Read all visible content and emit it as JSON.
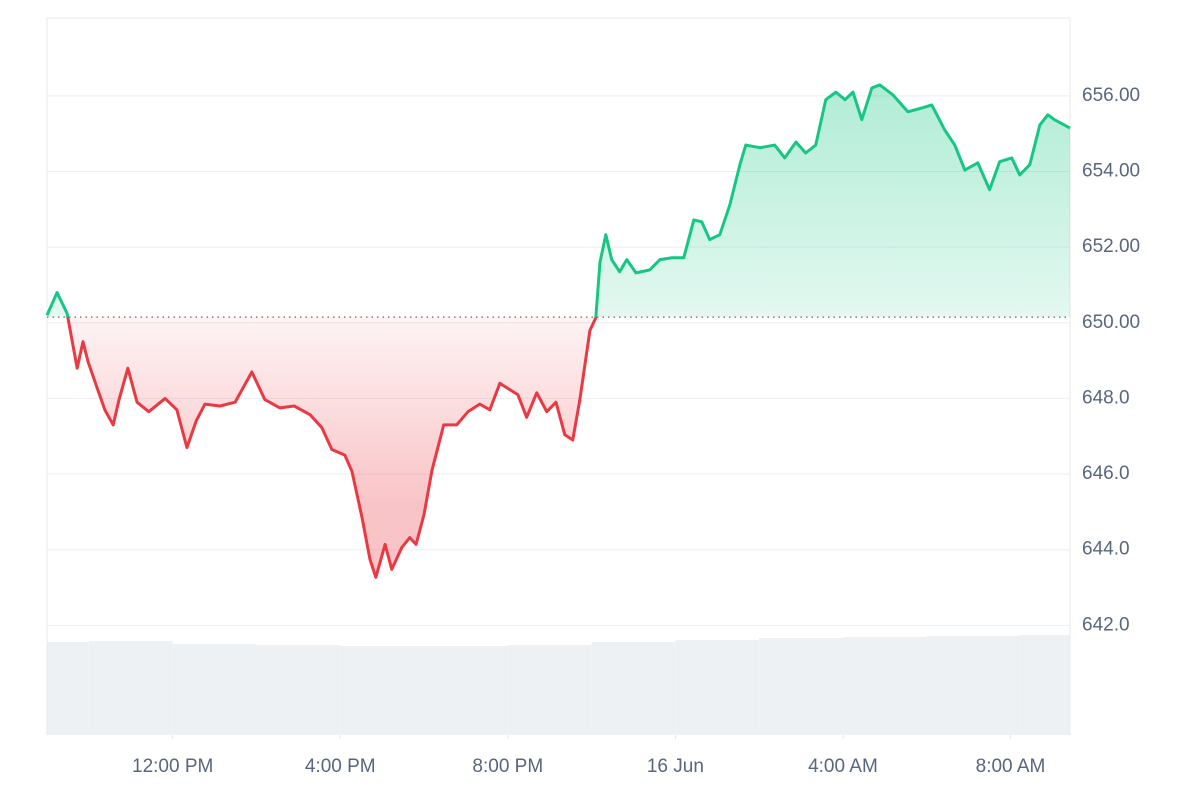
{
  "chart_data": {
    "type": "line",
    "x": [
      9.0,
      9.24,
      9.48,
      9.72,
      9.86,
      9.98,
      10.19,
      10.38,
      10.58,
      10.72,
      10.93,
      11.15,
      11.43,
      11.82,
      12.1,
      12.34,
      12.56,
      12.77,
      13.13,
      13.49,
      13.89,
      14.2,
      14.56,
      14.9,
      15.28,
      15.56,
      15.8,
      16.11,
      16.28,
      16.52,
      16.71,
      16.85,
      17.07,
      17.23,
      17.47,
      17.66,
      17.81,
      18.0,
      18.19,
      18.47,
      18.78,
      19.05,
      19.33,
      19.57,
      19.81,
      20.05,
      20.24,
      20.45,
      20.69,
      20.93,
      21.15,
      21.36,
      21.55,
      21.72,
      21.96,
      22.1,
      22.2,
      22.34,
      22.48,
      22.67,
      22.84,
      23.06,
      23.39,
      23.63,
      23.92,
      24.2,
      24.44,
      24.63,
      24.82,
      25.06,
      25.3,
      25.54,
      25.68,
      26.02,
      26.37,
      26.61,
      26.88,
      27.11,
      27.35,
      27.59,
      27.83,
      28.05,
      28.24,
      28.45,
      28.69,
      28.88,
      29.19,
      29.55,
      29.88,
      30.12,
      30.43,
      30.67,
      30.91,
      31.22,
      31.5,
      31.74,
      32.03,
      32.22,
      32.46,
      32.7,
      32.89,
      33.05,
      33.42
    ],
    "series": [
      {
        "values": [
          650.2,
          650.8,
          650.25,
          648.8,
          649.5,
          648.97,
          648.3,
          647.7,
          647.3,
          647.97,
          648.8,
          647.9,
          647.65,
          648.0,
          647.7,
          646.7,
          647.4,
          647.85,
          647.8,
          647.9,
          648.7,
          647.97,
          647.75,
          647.8,
          647.57,
          647.23,
          646.65,
          646.5,
          646.07,
          644.85,
          643.74,
          643.27,
          644.14,
          643.48,
          644.06,
          644.32,
          644.14,
          644.93,
          646.1,
          647.3,
          647.3,
          647.65,
          647.85,
          647.7,
          648.4,
          648.23,
          648.1,
          647.5,
          648.15,
          647.65,
          647.9,
          647.04,
          646.9,
          647.97,
          649.8,
          650.13,
          651.6,
          652.33,
          651.67,
          651.35,
          651.67,
          651.32,
          651.4,
          651.67,
          651.72,
          651.72,
          652.72,
          652.67,
          652.2,
          652.33,
          653.12,
          654.18,
          654.7,
          654.63,
          654.7,
          654.36,
          654.78,
          654.49,
          654.7,
          655.9,
          656.1,
          655.9,
          656.1,
          655.37,
          656.21,
          656.29,
          656.03,
          655.58,
          655.68,
          655.76,
          655.1,
          654.7,
          654.04,
          654.23,
          653.52,
          654.26,
          654.36,
          653.91,
          654.18,
          655.23,
          655.5,
          655.37,
          655.15
        ]
      }
    ],
    "up_color": "#16c784",
    "down_color": "#ea3943",
    "baseline": 650.15,
    "volume": {
      "color": "#eef1f4",
      "x": [
        9,
        11,
        13,
        15,
        17,
        19,
        21,
        23,
        25,
        27,
        29,
        31,
        33.42
      ],
      "values": [
        93,
        94,
        91,
        90,
        89,
        89,
        90,
        93,
        95,
        97,
        98,
        99,
        100
      ],
      "lim": [
        0,
        717
      ]
    },
    "xlim": [
      9,
      33.42
    ],
    "ylim": [
      639.1,
      658.06
    ],
    "xticks": [
      {
        "value": 12,
        "label": "12:00 PM"
      },
      {
        "value": 16,
        "label": "4:00 PM"
      },
      {
        "value": 20,
        "label": "8:00 PM"
      },
      {
        "value": 24,
        "label": "16 Jun"
      },
      {
        "value": 28,
        "label": "4:00 AM"
      },
      {
        "value": 32,
        "label": "8:00 AM"
      }
    ],
    "yticks": [
      {
        "value": 642,
        "label": "642.0"
      },
      {
        "value": 644,
        "label": "644.0"
      },
      {
        "value": 646,
        "label": "646.0"
      },
      {
        "value": 648,
        "label": "648.0"
      },
      {
        "value": 650,
        "label": "650.00"
      },
      {
        "value": 652,
        "label": "652.00"
      },
      {
        "value": 654,
        "label": "654.00"
      },
      {
        "value": 656,
        "label": "656.00"
      }
    ],
    "grid": true
  }
}
